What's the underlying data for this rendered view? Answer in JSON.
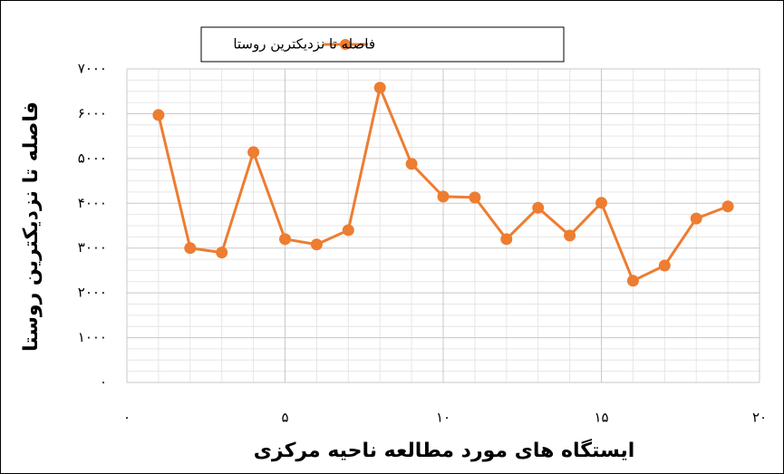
{
  "chart_data": {
    "type": "line",
    "xlabel": "ایستگاه های مورد مطالعه ناحیه مرکزی",
    "ylabel": "فاصله تا نزدیکترین روستا",
    "x": [
      1,
      2,
      3,
      4,
      5,
      6,
      7,
      8,
      9,
      10,
      11,
      12,
      13,
      14,
      15,
      16,
      17,
      18,
      19
    ],
    "series": [
      {
        "name": "فاصله تا نزدیکترین روستا",
        "color": "#ed7d31",
        "values": [
          5970,
          3000,
          2900,
          5140,
          3200,
          3080,
          3400,
          6580,
          4880,
          4150,
          4130,
          3200,
          3900,
          3280,
          4010,
          2270,
          2610,
          3660,
          3930
        ]
      }
    ],
    "xlim": [
      0,
      20
    ],
    "xticks": [
      {
        "value": 0,
        "label": "۰"
      },
      {
        "value": 5,
        "label": "۵"
      },
      {
        "value": 10,
        "label": "۱۰"
      },
      {
        "value": 15,
        "label": "۱۵"
      },
      {
        "value": 20,
        "label": "۲۰"
      }
    ],
    "ylim": [
      0,
      7000
    ],
    "yticks": [
      {
        "value": 0,
        "label": "۰"
      },
      {
        "value": 1000,
        "label": "۱۰۰۰"
      },
      {
        "value": 2000,
        "label": "۲۰۰۰"
      },
      {
        "value": 3000,
        "label": "۳۰۰۰"
      },
      {
        "value": 4000,
        "label": "۴۰۰۰"
      },
      {
        "value": 5000,
        "label": "۵۰۰۰"
      },
      {
        "value": 6000,
        "label": "۶۰۰۰"
      },
      {
        "value": 7000,
        "label": "۷۰۰۰"
      }
    ],
    "grid": true,
    "legend": "top"
  }
}
